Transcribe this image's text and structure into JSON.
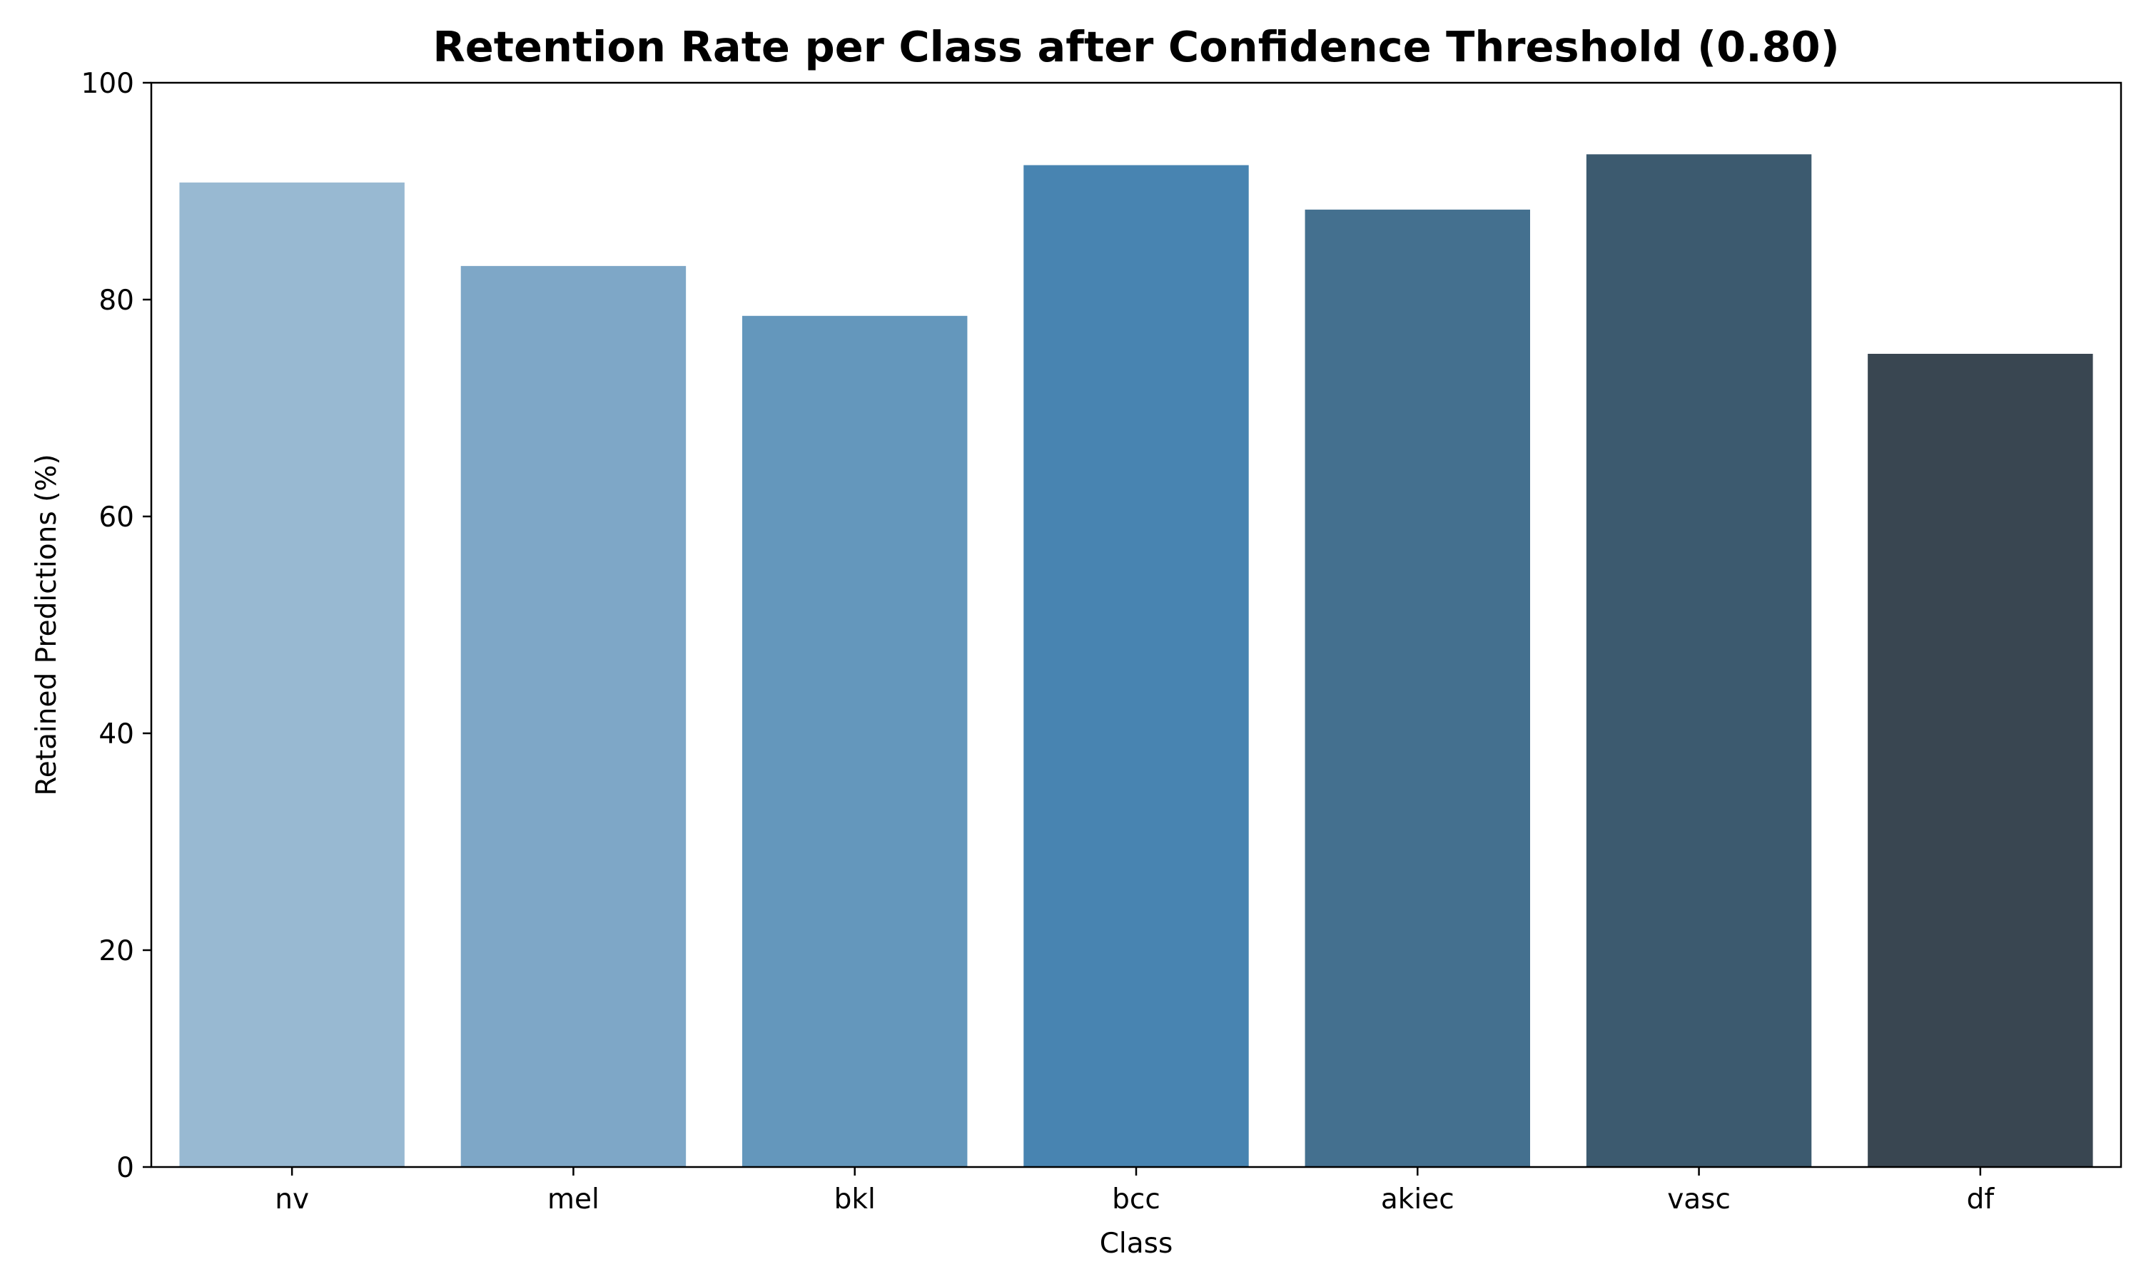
{
  "chart_data": {
    "type": "bar",
    "title": "Retention Rate per Class after Confidence Threshold (0.80)",
    "xlabel": "Class",
    "ylabel": "Retained Predictions (%)",
    "categories": [
      "nv",
      "mel",
      "bkl",
      "bcc",
      "akiec",
      "vasc",
      "df"
    ],
    "values": [
      90.8,
      83.1,
      78.5,
      92.4,
      88.3,
      93.4,
      75.0
    ],
    "colors": [
      "#98b9d2",
      "#7ea7c7",
      "#6497bc",
      "#4884b1",
      "#44708f",
      "#3c5a6f",
      "#394651"
    ],
    "ylim": [
      0,
      100
    ],
    "yticks": [
      0,
      20,
      40,
      60,
      80,
      100
    ],
    "grid": false,
    "legend": "none"
  }
}
